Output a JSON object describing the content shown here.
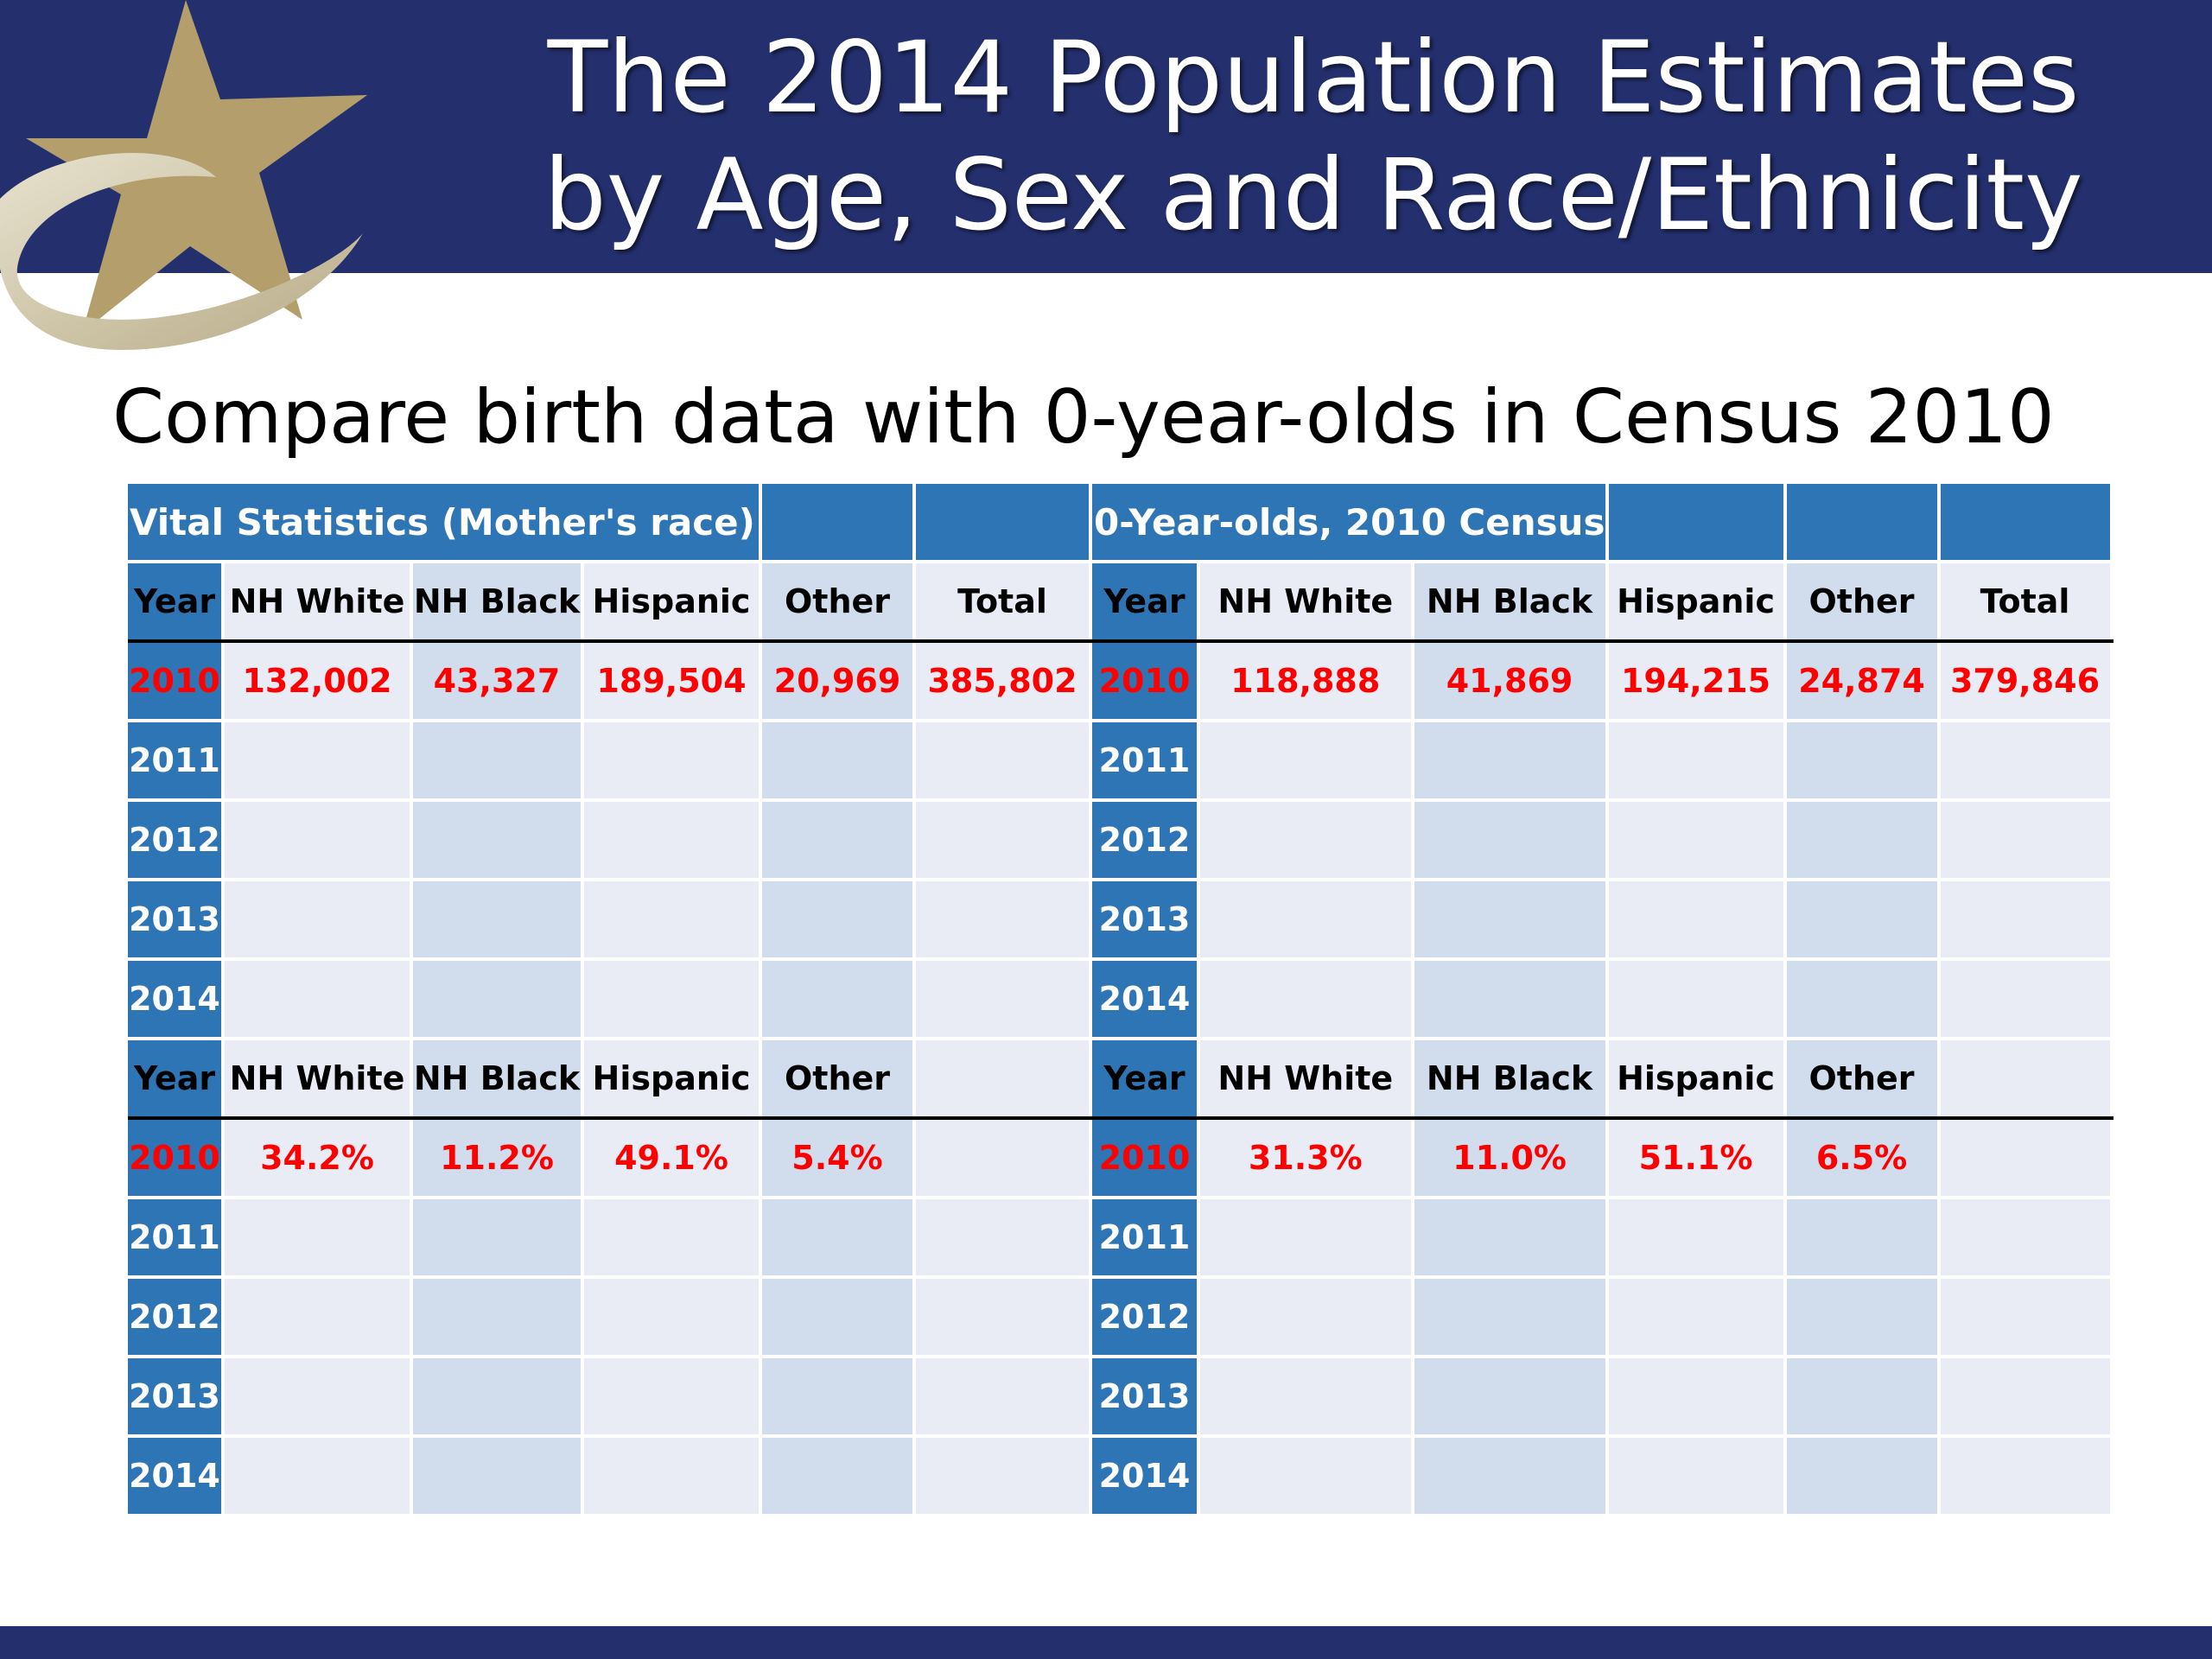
{
  "header": {
    "title_line1": "The 2014 Population Estimates",
    "title_line2": "by Age, Sex and Race/Ethnicity"
  },
  "subtitle": "Compare birth data with 0-year-olds in Census 2010",
  "colors": {
    "header_band": "#24306e",
    "table_accent": "#2e75b6",
    "row_light": "#e9ebf5",
    "row_dark": "#d1dcec",
    "value_red": "#ff0000",
    "logo_gold": "#b49f6c"
  },
  "table": {
    "vital_title": "Vital Statistics (Mother's race)",
    "census_title": "0-Year-olds, 2010 Census",
    "headers": [
      "Year",
      "NH White",
      "NH Black",
      "Hispanic",
      "Other",
      "Total"
    ],
    "years": [
      "2010",
      "2011",
      "2012",
      "2013",
      "2014"
    ],
    "counts": {
      "vital_2010": [
        "132,002",
        "43,327",
        "189,504",
        "20,969",
        "385,802"
      ],
      "census_2010": [
        "118,888",
        "41,869",
        "194,215",
        "24,874",
        "379,846"
      ]
    },
    "percents": {
      "vital_2010": [
        "34.2%",
        "11.2%",
        "49.1%",
        "5.4%"
      ],
      "census_2010": [
        "31.3%",
        "11.0%",
        "51.1%",
        "6.5%"
      ]
    }
  }
}
